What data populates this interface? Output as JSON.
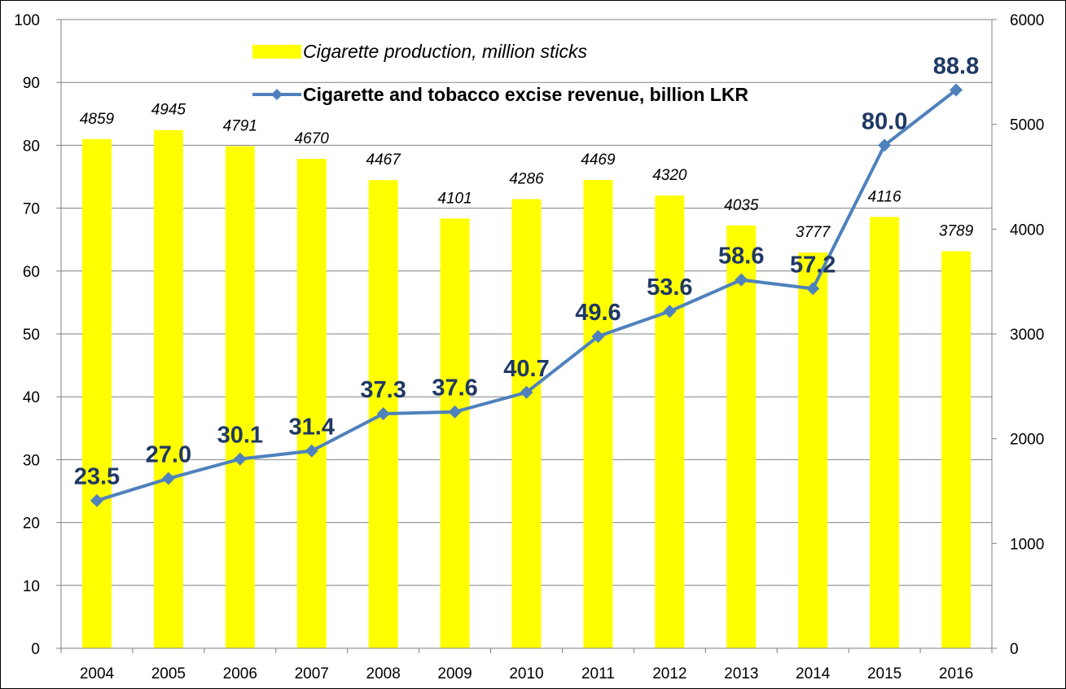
{
  "chart_data": {
    "type": "bar+line",
    "categories": [
      "2004",
      "2005",
      "2006",
      "2007",
      "2008",
      "2009",
      "2010",
      "2011",
      "2012",
      "2013",
      "2014",
      "2015",
      "2016"
    ],
    "series": [
      {
        "name": "Cigarette production, million sticks",
        "type": "bar",
        "axis": "right",
        "color": "#ffff00",
        "values": [
          4859,
          4945,
          4791,
          4670,
          4467,
          4101,
          4286,
          4469,
          4320,
          4035,
          3777,
          4116,
          3789
        ],
        "labels": [
          "4859",
          "4945",
          "4791",
          "4670",
          "4467",
          "4101",
          "4286",
          "4469",
          "4320",
          "4035",
          "3777",
          "4116",
          "3789"
        ]
      },
      {
        "name": "Cigarette and tobacco excise revenue, billion LKR",
        "type": "line",
        "axis": "left",
        "color": "#4f81bd",
        "values": [
          23.5,
          27.0,
          30.1,
          31.4,
          37.3,
          37.6,
          40.7,
          49.6,
          53.6,
          58.6,
          57.2,
          80.0,
          88.8
        ],
        "labels": [
          "23.5",
          "27.0",
          "30.1",
          "31.4",
          "37.3",
          "37.6",
          "40.7",
          "49.6",
          "53.6",
          "58.6",
          "57.2",
          "80.0",
          "88.8"
        ]
      }
    ],
    "left_axis": {
      "min": 0,
      "max": 100,
      "step": 10,
      "ticks": [
        "0",
        "10",
        "20",
        "30",
        "40",
        "50",
        "60",
        "70",
        "80",
        "90",
        "100"
      ]
    },
    "right_axis": {
      "min": 0,
      "max": 6000,
      "step": 1000,
      "ticks": [
        "0",
        "1000",
        "2000",
        "3000",
        "4000",
        "5000",
        "6000"
      ]
    },
    "grid": true,
    "legend_position": "top-center",
    "title": "",
    "xlabel": "",
    "ylabel": "",
    "colors": {
      "bar": "#ffff00",
      "line": "#4f81bd",
      "line_label": "#1f3864",
      "grid": "#808080"
    }
  }
}
